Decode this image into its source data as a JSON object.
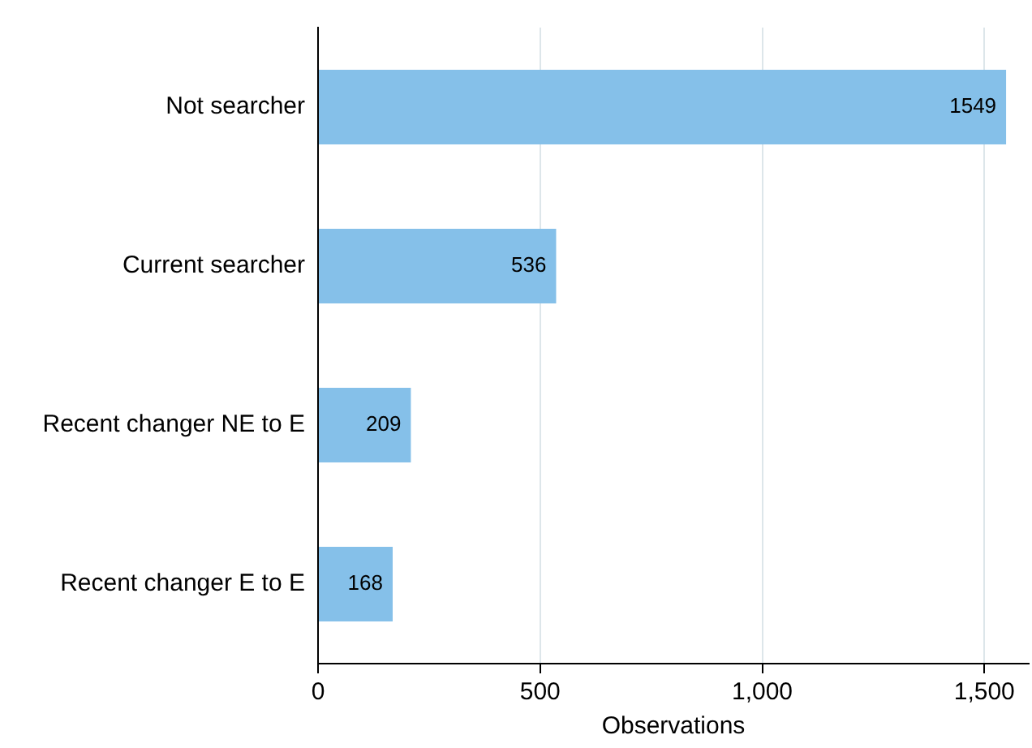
{
  "chart_data": {
    "type": "bar",
    "orientation": "horizontal",
    "xlabel": "Observations",
    "categories": [
      "Not searcher",
      "Current searcher",
      "Recent changer NE to E",
      "Recent changer E to E"
    ],
    "values": [
      1549,
      536,
      209,
      168
    ],
    "color": "#85c0e9",
    "xlim": [
      0,
      1600
    ],
    "xticks": [
      0,
      500,
      {
        "value": 1000,
        "label": "1,000"
      },
      {
        "value": 1500,
        "label": "1,500"
      }
    ],
    "grid": "x",
    "data_labels": true
  }
}
